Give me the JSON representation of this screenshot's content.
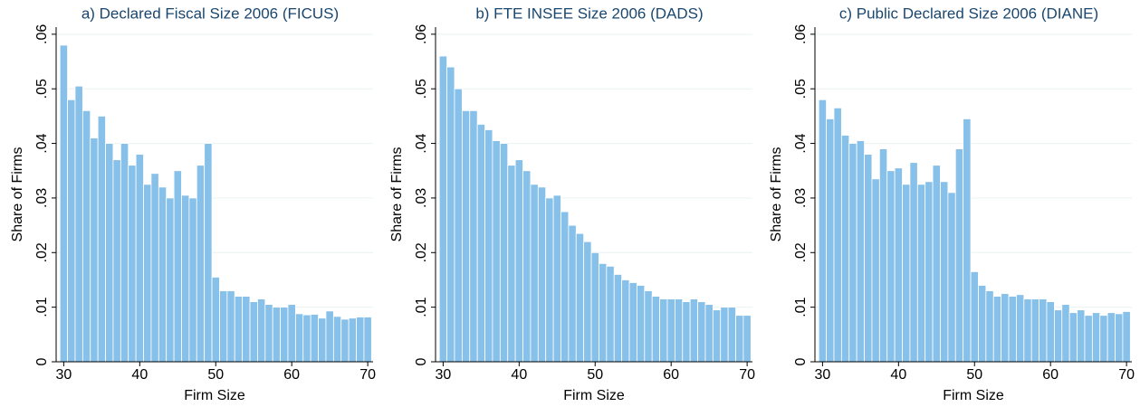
{
  "chart_data": [
    {
      "type": "histogram",
      "title": "a) Declared Fiscal Size 2006 (FICUS)",
      "xlabel": "Firm Size",
      "ylabel": "Share of Firms",
      "color": "#87c0e9",
      "bins": [
        29.5,
        30.5,
        31.5,
        32.5,
        33.5,
        34.5,
        35.5,
        36.5,
        37.5,
        38.5,
        39.5,
        40.5,
        41.5,
        42.5,
        43.5,
        44.5,
        45.5,
        46.5,
        47.5,
        48.5,
        49.5,
        50.5,
        51.5,
        52.5,
        53.5,
        54.5,
        55.5,
        56.5,
        57.5,
        58.5,
        59.5,
        60.5,
        61.5,
        62.5,
        63.5,
        64.5,
        65.5,
        66.5,
        67.5,
        68.5,
        69.5,
        70.5
      ],
      "values": [
        0.058,
        0.048,
        0.0505,
        0.046,
        0.041,
        0.045,
        0.04,
        0.037,
        0.04,
        0.036,
        0.038,
        0.0325,
        0.0345,
        0.032,
        0.03,
        0.035,
        0.0305,
        0.03,
        0.036,
        0.04,
        0.0155,
        0.013,
        0.013,
        0.012,
        0.012,
        0.011,
        0.0115,
        0.0105,
        0.01,
        0.01,
        0.0105,
        0.0088,
        0.0086,
        0.0087,
        0.008,
        0.0093,
        0.0083,
        0.0078,
        0.008,
        0.0082,
        0.0082
      ],
      "xlim": [
        29,
        70.7
      ],
      "ylim": [
        0,
        0.0613
      ],
      "xticks": [
        30,
        40,
        50,
        60,
        70
      ],
      "yticks": [
        0,
        {
          "value": 0.01,
          "label": ".01"
        },
        {
          "value": 0.02,
          "label": ".02"
        },
        {
          "value": 0.03,
          "label": ".03"
        },
        {
          "value": 0.04,
          "label": ".04"
        },
        {
          "value": 0.05,
          "label": ".05"
        },
        {
          "value": 0.06,
          "label": ".06"
        }
      ],
      "grid": true
    },
    {
      "type": "histogram",
      "title": "b) FTE INSEE Size 2006 (DADS)",
      "xlabel": "Firm Size",
      "ylabel": "Share of Firms",
      "color": "#87c0e9",
      "bins": [
        29.5,
        30.5,
        31.5,
        32.5,
        33.5,
        34.5,
        35.5,
        36.5,
        37.5,
        38.5,
        39.5,
        40.5,
        41.5,
        42.5,
        43.5,
        44.5,
        45.5,
        46.5,
        47.5,
        48.5,
        49.5,
        50.5,
        51.5,
        52.5,
        53.5,
        54.5,
        55.5,
        56.5,
        57.5,
        58.5,
        59.5,
        60.5,
        61.5,
        62.5,
        63.5,
        64.5,
        65.5,
        66.5,
        67.5,
        68.5,
        69.5,
        70.5
      ],
      "values": [
        0.056,
        0.054,
        0.05,
        0.046,
        0.046,
        0.0435,
        0.0425,
        0.0405,
        0.04,
        0.036,
        0.037,
        0.035,
        0.0325,
        0.032,
        0.03,
        0.0305,
        0.0275,
        0.025,
        0.0235,
        0.022,
        0.02,
        0.018,
        0.0175,
        0.016,
        0.015,
        0.0145,
        0.014,
        0.013,
        0.012,
        0.0115,
        0.0115,
        0.0115,
        0.011,
        0.0115,
        0.011,
        0.0105,
        0.0095,
        0.01,
        0.01,
        0.0085,
        0.0085
      ],
      "xlim": [
        29,
        70.7
      ],
      "ylim": [
        0,
        0.0613
      ],
      "xticks": [
        30,
        40,
        50,
        60,
        70
      ],
      "yticks": [
        0,
        {
          "value": 0.01,
          "label": ".01"
        },
        {
          "value": 0.02,
          "label": ".02"
        },
        {
          "value": 0.03,
          "label": ".03"
        },
        {
          "value": 0.04,
          "label": ".04"
        },
        {
          "value": 0.05,
          "label": ".05"
        },
        {
          "value": 0.06,
          "label": ".06"
        }
      ],
      "grid": true
    },
    {
      "type": "histogram",
      "title": "c) Public Declared Size 2006 (DIANE)",
      "xlabel": "Firm Size",
      "ylabel": "Share of Firms",
      "color": "#87c0e9",
      "bins": [
        29.5,
        30.5,
        31.5,
        32.5,
        33.5,
        34.5,
        35.5,
        36.5,
        37.5,
        38.5,
        39.5,
        40.5,
        41.5,
        42.5,
        43.5,
        44.5,
        45.5,
        46.5,
        47.5,
        48.5,
        49.5,
        50.5,
        51.5,
        52.5,
        53.5,
        54.5,
        55.5,
        56.5,
        57.5,
        58.5,
        59.5,
        60.5,
        61.5,
        62.5,
        63.5,
        64.5,
        65.5,
        66.5,
        67.5,
        68.5,
        69.5,
        70.5
      ],
      "values": [
        0.048,
        0.0445,
        0.0465,
        0.0415,
        0.04,
        0.0405,
        0.038,
        0.0335,
        0.039,
        0.035,
        0.0355,
        0.0325,
        0.0365,
        0.0325,
        0.033,
        0.036,
        0.033,
        0.031,
        0.039,
        0.0445,
        0.0165,
        0.014,
        0.013,
        0.012,
        0.0125,
        0.012,
        0.0123,
        0.0115,
        0.0115,
        0.0115,
        0.011,
        0.0095,
        0.0105,
        0.009,
        0.0095,
        0.0085,
        0.009,
        0.0085,
        0.009,
        0.0088,
        0.0092
      ],
      "xlim": [
        29,
        70.7
      ],
      "ylim": [
        0,
        0.0613
      ],
      "xticks": [
        30,
        40,
        50,
        60,
        70
      ],
      "yticks": [
        0,
        {
          "value": 0.01,
          "label": ".01"
        },
        {
          "value": 0.02,
          "label": ".02"
        },
        {
          "value": 0.03,
          "label": ".03"
        },
        {
          "value": 0.04,
          "label": ".04"
        },
        {
          "value": 0.05,
          "label": ".05"
        },
        {
          "value": 0.06,
          "label": ".06"
        }
      ],
      "grid": true
    }
  ]
}
